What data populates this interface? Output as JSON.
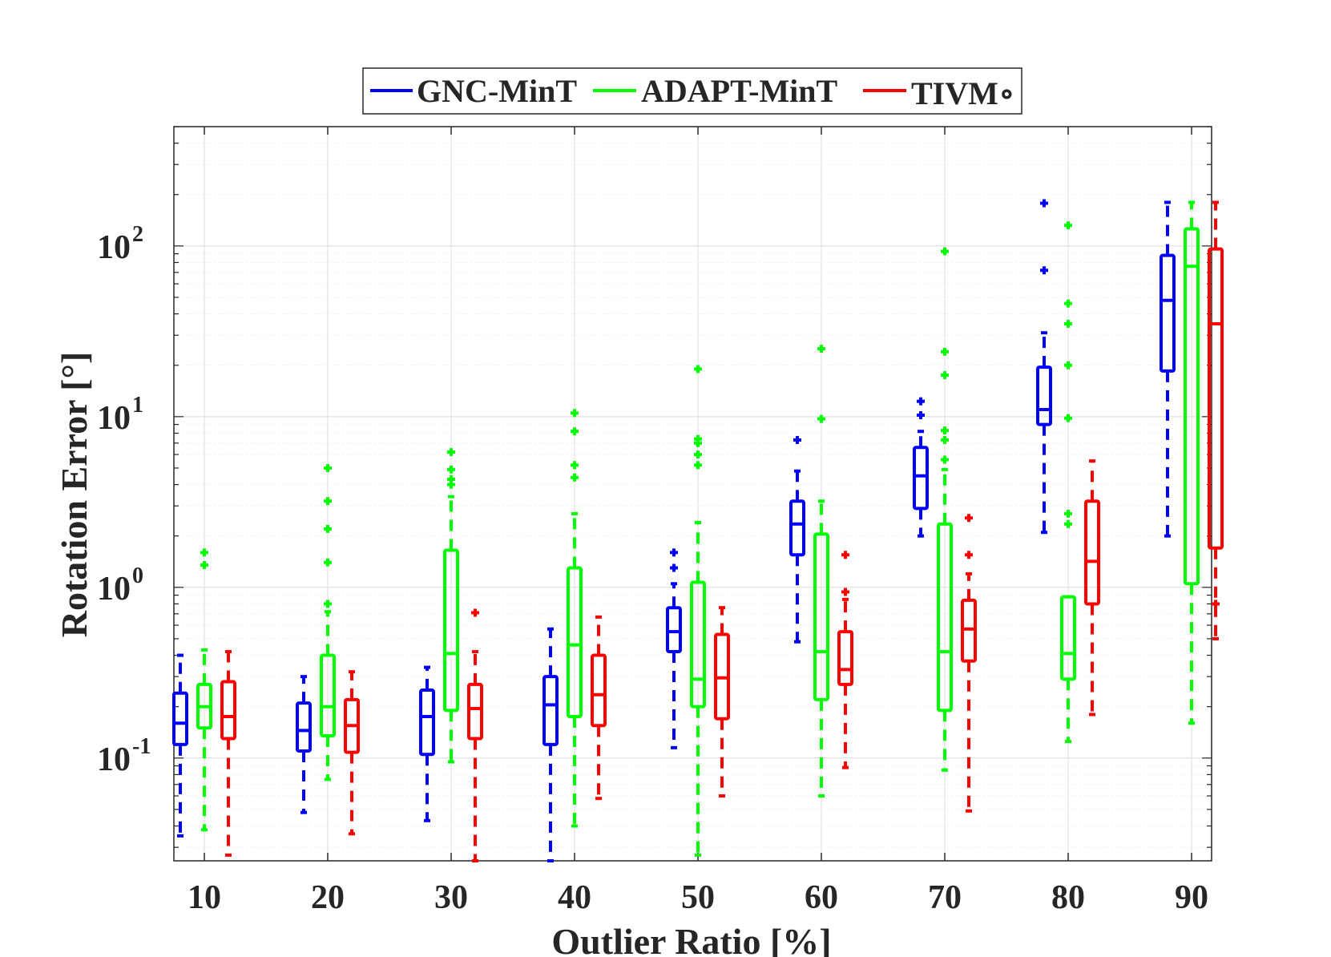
{
  "chart_data": {
    "type": "boxplot",
    "title": "",
    "xlabel": "Outlier Ratio [%]",
    "ylabel": "Rotation Error [°]",
    "yscale": "log",
    "ylim": [
      0.025,
      500
    ],
    "y_ticks": [
      {
        "value": 0.1,
        "base": "10",
        "exp": "-1"
      },
      {
        "value": 1,
        "base": "10",
        "exp": "0"
      },
      {
        "value": 10,
        "base": "10",
        "exp": "1"
      },
      {
        "value": 100,
        "base": "10",
        "exp": "2"
      }
    ],
    "categories": [
      "10",
      "20",
      "30",
      "40",
      "50",
      "60",
      "70",
      "80",
      "90"
    ],
    "grid": true,
    "legend_position": "top-center-outside",
    "series": [
      {
        "name": "GNC-MinT",
        "color": "#0000ff",
        "boxes": [
          {
            "wl": 0.035,
            "q1": 0.12,
            "med": 0.16,
            "q3": 0.24,
            "wh": 0.4,
            "outliers": []
          },
          {
            "wl": 0.048,
            "q1": 0.11,
            "med": 0.145,
            "q3": 0.21,
            "wh": 0.3,
            "outliers": []
          },
          {
            "wl": 0.043,
            "q1": 0.105,
            "med": 0.175,
            "q3": 0.25,
            "wh": 0.34,
            "outliers": []
          },
          {
            "wl": 0.025,
            "q1": 0.12,
            "med": 0.205,
            "q3": 0.3,
            "wh": 0.57,
            "outliers": []
          },
          {
            "wl": 0.115,
            "q1": 0.42,
            "med": 0.55,
            "q3": 0.76,
            "wh": 1.05,
            "outliers": [
              1.3,
              1.6
            ]
          },
          {
            "wl": 0.48,
            "q1": 1.55,
            "med": 2.35,
            "q3": 3.2,
            "wh": 4.8,
            "outliers": [
              7.3
            ]
          },
          {
            "wl": 2.0,
            "q1": 2.9,
            "med": 4.5,
            "q3": 6.6,
            "wh": 8.2,
            "outliers": [
              10.2,
              12.3
            ]
          },
          {
            "wl": 2.1,
            "q1": 9.0,
            "med": 11.0,
            "q3": 19.5,
            "wh": 31,
            "outliers": [
              72,
              178
            ]
          },
          {
            "wl": 2.0,
            "q1": 18.5,
            "med": 48,
            "q3": 88,
            "wh": 180,
            "outliers": []
          }
        ]
      },
      {
        "name": "ADAPT-MinT",
        "color": "#00ff00",
        "boxes": [
          {
            "wl": 0.038,
            "q1": 0.15,
            "med": 0.2,
            "q3": 0.27,
            "wh": 0.43,
            "outliers": [
              1.35,
              1.6
            ]
          },
          {
            "wl": 0.075,
            "q1": 0.135,
            "med": 0.2,
            "q3": 0.4,
            "wh": 0.72,
            "outliers": [
              0.8,
              1.4,
              2.2,
              3.2,
              5.0
            ]
          },
          {
            "wl": 0.095,
            "q1": 0.19,
            "med": 0.41,
            "q3": 1.65,
            "wh": 3.4,
            "outliers": [
              4.0,
              4.3,
              4.9,
              6.2
            ]
          },
          {
            "wl": 0.04,
            "q1": 0.175,
            "med": 0.46,
            "q3": 1.3,
            "wh": 2.7,
            "outliers": [
              4.4,
              5.2,
              8.2,
              10.5
            ]
          },
          {
            "wl": 0.027,
            "q1": 0.2,
            "med": 0.29,
            "q3": 1.07,
            "wh": 2.4,
            "outliers": [
              5.2,
              6.0,
              7.0,
              7.4,
              19
            ]
          },
          {
            "wl": 0.06,
            "q1": 0.22,
            "med": 0.42,
            "q3": 2.05,
            "wh": 3.2,
            "outliers": [
              9.7,
              25
            ]
          },
          {
            "wl": 0.085,
            "q1": 0.19,
            "med": 0.42,
            "q3": 2.35,
            "wh": 4.9,
            "outliers": [
              5.6,
              7.3,
              8.3,
              17.5,
              24,
              93
            ]
          },
          {
            "wl": 0.125,
            "q1": 0.29,
            "med": 0.41,
            "q3": 0.88,
            "wh": 0.88,
            "outliers": [
              2.35,
              2.7,
              9.8,
              20,
              35,
              46,
              132
            ]
          },
          {
            "wl": 0.16,
            "q1": 1.05,
            "med": 76,
            "q3": 126,
            "wh": 180,
            "outliers": []
          }
        ]
      },
      {
        "name": "TIVM∘",
        "color": "#ff0000",
        "boxes": [
          {
            "wl": 0.027,
            "q1": 0.13,
            "med": 0.175,
            "q3": 0.28,
            "wh": 0.42,
            "outliers": []
          },
          {
            "wl": 0.036,
            "q1": 0.108,
            "med": 0.155,
            "q3": 0.22,
            "wh": 0.32,
            "outliers": []
          },
          {
            "wl": 0.025,
            "q1": 0.13,
            "med": 0.195,
            "q3": 0.27,
            "wh": 0.42,
            "outliers": [
              0.71
            ]
          },
          {
            "wl": 0.058,
            "q1": 0.155,
            "med": 0.235,
            "q3": 0.4,
            "wh": 0.67,
            "outliers": []
          },
          {
            "wl": 0.06,
            "q1": 0.17,
            "med": 0.295,
            "q3": 0.53,
            "wh": 0.76,
            "outliers": []
          },
          {
            "wl": 0.088,
            "q1": 0.27,
            "med": 0.33,
            "q3": 0.55,
            "wh": 0.85,
            "outliers": [
              0.94,
              1.55
            ]
          },
          {
            "wl": 0.049,
            "q1": 0.37,
            "med": 0.57,
            "q3": 0.84,
            "wh": 1.2,
            "outliers": [
              1.55,
              2.55
            ]
          },
          {
            "wl": 0.18,
            "q1": 0.8,
            "med": 1.42,
            "q3": 3.2,
            "wh": 5.5,
            "outliers": []
          },
          {
            "wl": 0.5,
            "q1": 1.7,
            "med": 35,
            "q3": 96,
            "wh": 180,
            "outliers": [
              0.8
            ]
          }
        ]
      }
    ]
  }
}
